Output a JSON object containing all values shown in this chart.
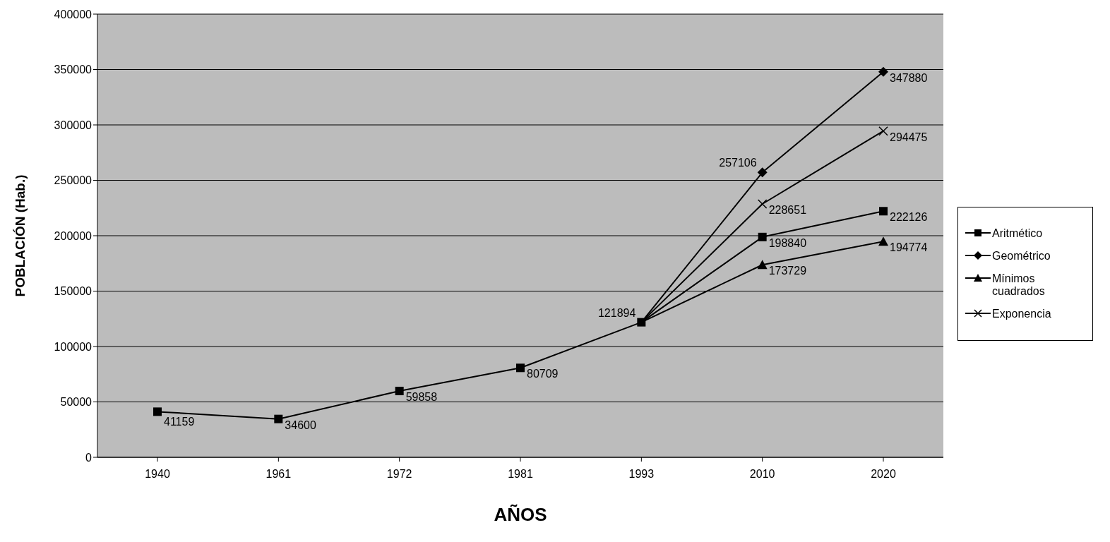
{
  "chart_data": {
    "type": "line",
    "xlabel": "AÑOS",
    "ylabel": "POBLACIÓN (Hab.)",
    "categories": [
      "1940",
      "1961",
      "1972",
      "1981",
      "1993",
      "2010",
      "2020"
    ],
    "series": [
      {
        "name": "Aritmético",
        "color": "#000000",
        "marker": "square",
        "values": [
          41159,
          34600,
          59858,
          80709,
          121894,
          198840,
          222126
        ],
        "value_labels": [
          "41159",
          "34600",
          "59858",
          "80709",
          "121894",
          "198840",
          "222126"
        ]
      },
      {
        "name": "Geométrico",
        "color": "#000000",
        "marker": "diamond",
        "values": [
          null,
          null,
          null,
          null,
          121894,
          257106,
          347880
        ],
        "value_labels": [
          null,
          null,
          null,
          null,
          null,
          "257106",
          "347880"
        ]
      },
      {
        "name": "Mínimos cuadrados",
        "color": "#000000",
        "marker": "triangle",
        "values": [
          null,
          null,
          null,
          null,
          121894,
          173729,
          194774
        ],
        "value_labels": [
          null,
          null,
          null,
          null,
          null,
          "173729",
          "194774"
        ]
      },
      {
        "name": "Exponencia",
        "color": "#000000",
        "marker": "cross",
        "values": [
          null,
          null,
          null,
          null,
          121894,
          228651,
          294475
        ],
        "value_labels": [
          null,
          null,
          null,
          null,
          null,
          "228651",
          "294475"
        ]
      }
    ],
    "ylim": [
      0,
      400000
    ],
    "yticks": [
      0,
      50000,
      100000,
      150000,
      200000,
      250000,
      300000,
      350000,
      400000
    ],
    "grid": "y",
    "legend": "right",
    "line_style": "solid"
  }
}
